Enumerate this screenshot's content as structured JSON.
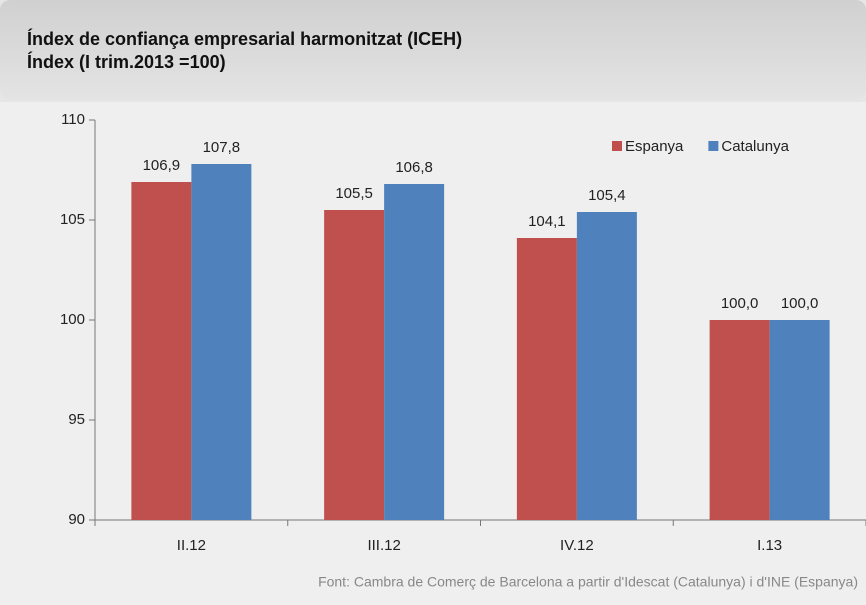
{
  "chart_data": {
    "type": "bar",
    "title": "Índex de confiança empresarial harmonitzat (ICEH)",
    "subtitle": "Índex (I trim.2013 =100)",
    "categories": [
      "II.12",
      "III.12",
      "IV.12",
      "I.13"
    ],
    "series": [
      {
        "name": "Espanya",
        "color": "#c0504d",
        "values": [
          106.9,
          105.5,
          104.1,
          100.0
        ],
        "value_labels": [
          "106,9",
          "105,5",
          "104,1",
          "100,0"
        ]
      },
      {
        "name": "Catalunya",
        "color": "#4f81bd",
        "values": [
          107.8,
          106.8,
          105.4,
          100.0
        ],
        "value_labels": [
          "107,8",
          "106,8",
          "105,4",
          "100,0"
        ]
      }
    ],
    "ylim": [
      90,
      110
    ],
    "yticks": [
      90,
      95,
      100,
      105,
      110
    ],
    "grid": false,
    "legend": "top-right",
    "source": "Font: Cambra de Comerç de Barcelona a partir d'Idescat (Catalunya) i d'INE (Espanya)"
  }
}
